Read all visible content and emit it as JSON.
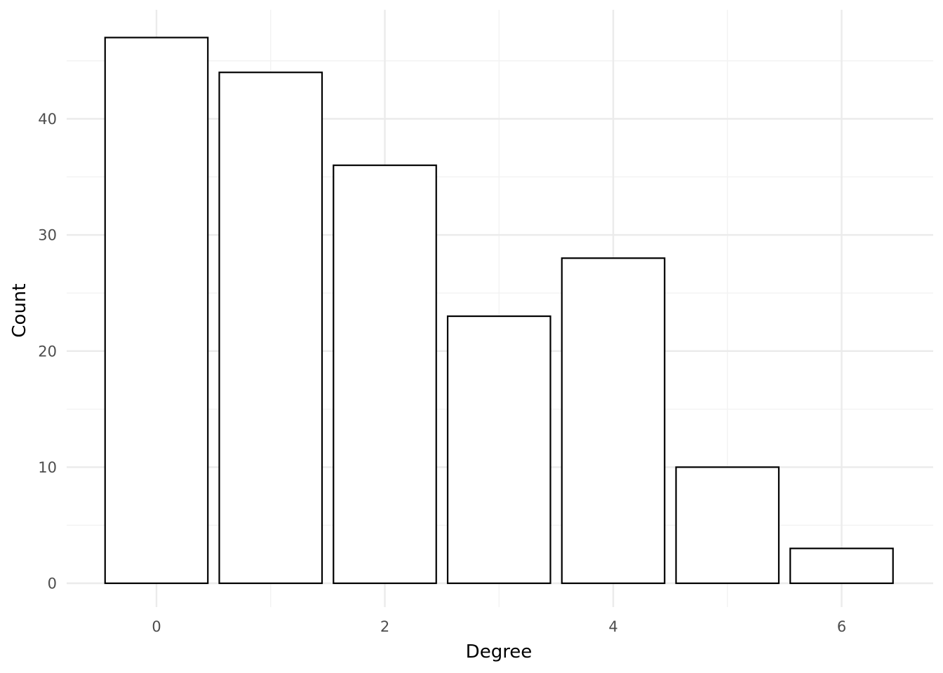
{
  "chart_data": {
    "type": "bar",
    "title": "",
    "xlabel": "Degree",
    "ylabel": "Count",
    "x": [
      0,
      1,
      2,
      3,
      4,
      5,
      6
    ],
    "values": [
      47,
      44,
      36,
      23,
      28,
      10,
      3
    ],
    "xlim": [
      -0.5,
      6.5
    ],
    "ylim": [
      0,
      47
    ],
    "x_ticks": [
      0,
      2,
      4,
      6
    ],
    "y_ticks": [
      0,
      10,
      20,
      30,
      40
    ],
    "grid": true,
    "legend": "none",
    "colors": {
      "bar_fill": "#ffffff",
      "bar_stroke": "#000000",
      "grid_major": "#ebebeb",
      "grid_minor": "#f3f3f3",
      "tick_text": "#4d4d4d"
    }
  }
}
